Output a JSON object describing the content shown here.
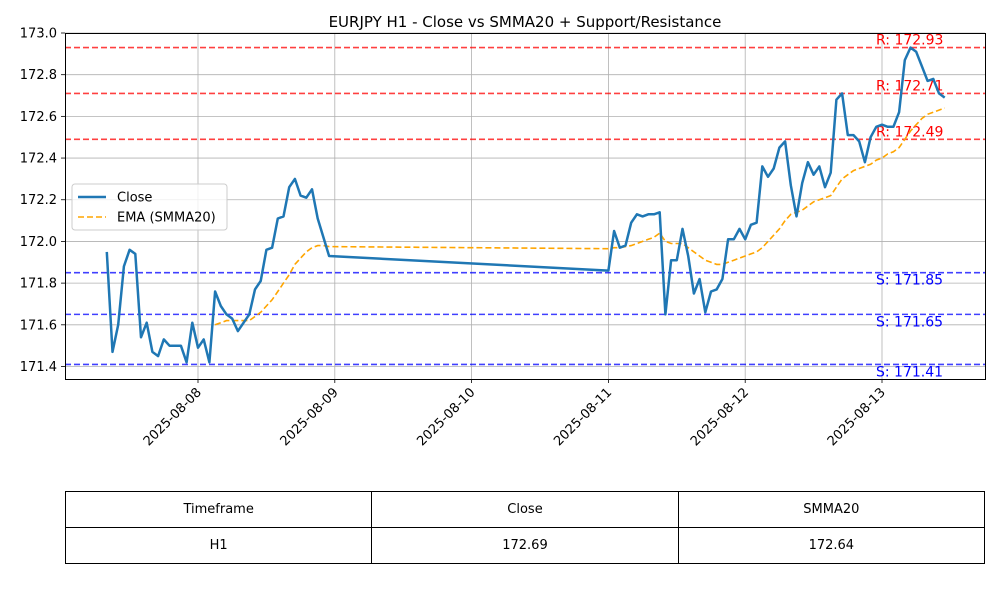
{
  "chart_data": {
    "type": "line",
    "title": "EURJPY H1 - Close vs SMMA20 + Support/Resistance",
    "xlabel": "",
    "ylabel": "",
    "x_ticks": [
      "2025-08-08",
      "2025-08-09",
      "2025-08-10",
      "2025-08-11",
      "2025-08-12",
      "2025-08-13"
    ],
    "ylim": [
      171.34,
      173.0
    ],
    "y_ticks": [
      "171.4",
      "171.6",
      "171.8",
      "172.0",
      "172.2",
      "172.4",
      "172.6",
      "172.8",
      "173.0"
    ],
    "y_tick_values": [
      171.4,
      171.6,
      171.8,
      172.0,
      172.2,
      172.4,
      172.6,
      172.8,
      173.0
    ],
    "grid": true,
    "legend_position": "center-left",
    "colors": {
      "close": "#1f77b4",
      "ema": "#ffa500",
      "resistance": "#ff0000",
      "support": "#0000ff"
    },
    "series": [
      {
        "name": "Close",
        "style": "solid",
        "points": [
          [
            "2025-08-07 08:00",
            171.95
          ],
          [
            "2025-08-07 09:00",
            171.47
          ],
          [
            "2025-08-07 10:00",
            171.6
          ],
          [
            "2025-08-07 11:00",
            171.88
          ],
          [
            "2025-08-07 12:00",
            171.96
          ],
          [
            "2025-08-07 13:00",
            171.94
          ],
          [
            "2025-08-07 14:00",
            171.54
          ],
          [
            "2025-08-07 15:00",
            171.61
          ],
          [
            "2025-08-07 16:00",
            171.47
          ],
          [
            "2025-08-07 17:00",
            171.45
          ],
          [
            "2025-08-07 18:00",
            171.53
          ],
          [
            "2025-08-07 19:00",
            171.5
          ],
          [
            "2025-08-07 20:00",
            171.5
          ],
          [
            "2025-08-07 21:00",
            171.5
          ],
          [
            "2025-08-07 22:00",
            171.42
          ],
          [
            "2025-08-07 23:00",
            171.61
          ],
          [
            "2025-08-08 00:00",
            171.49
          ],
          [
            "2025-08-08 01:00",
            171.53
          ],
          [
            "2025-08-08 02:00",
            171.42
          ],
          [
            "2025-08-08 03:00",
            171.76
          ],
          [
            "2025-08-08 04:00",
            171.69
          ],
          [
            "2025-08-08 05:00",
            171.65
          ],
          [
            "2025-08-08 06:00",
            171.63
          ],
          [
            "2025-08-08 07:00",
            171.57
          ],
          [
            "2025-08-08 08:00",
            171.61
          ],
          [
            "2025-08-08 09:00",
            171.65
          ],
          [
            "2025-08-08 10:00",
            171.77
          ],
          [
            "2025-08-08 11:00",
            171.81
          ],
          [
            "2025-08-08 12:00",
            171.96
          ],
          [
            "2025-08-08 13:00",
            171.97
          ],
          [
            "2025-08-08 14:00",
            172.11
          ],
          [
            "2025-08-08 15:00",
            172.12
          ],
          [
            "2025-08-08 16:00",
            172.26
          ],
          [
            "2025-08-08 17:00",
            172.3
          ],
          [
            "2025-08-08 18:00",
            172.22
          ],
          [
            "2025-08-08 19:00",
            172.21
          ],
          [
            "2025-08-08 20:00",
            172.25
          ],
          [
            "2025-08-08 21:00",
            172.11
          ],
          [
            "2025-08-08 22:00",
            172.02
          ],
          [
            "2025-08-08 23:00",
            171.93
          ],
          [
            "2025-08-11 00:00",
            171.86
          ],
          [
            "2025-08-11 01:00",
            172.05
          ],
          [
            "2025-08-11 02:00",
            171.97
          ],
          [
            "2025-08-11 03:00",
            171.98
          ],
          [
            "2025-08-11 04:00",
            172.09
          ],
          [
            "2025-08-11 05:00",
            172.13
          ],
          [
            "2025-08-11 06:00",
            172.12
          ],
          [
            "2025-08-11 07:00",
            172.13
          ],
          [
            "2025-08-11 08:00",
            172.13
          ],
          [
            "2025-08-11 09:00",
            172.14
          ],
          [
            "2025-08-11 10:00",
            171.65
          ],
          [
            "2025-08-11 11:00",
            171.91
          ],
          [
            "2025-08-11 12:00",
            171.91
          ],
          [
            "2025-08-11 13:00",
            172.06
          ],
          [
            "2025-08-11 14:00",
            171.93
          ],
          [
            "2025-08-11 15:00",
            171.75
          ],
          [
            "2025-08-11 16:00",
            171.82
          ],
          [
            "2025-08-11 17:00",
            171.66
          ],
          [
            "2025-08-11 18:00",
            171.76
          ],
          [
            "2025-08-11 19:00",
            171.77
          ],
          [
            "2025-08-11 20:00",
            171.82
          ],
          [
            "2025-08-11 21:00",
            172.01
          ],
          [
            "2025-08-11 22:00",
            172.01
          ],
          [
            "2025-08-11 23:00",
            172.06
          ],
          [
            "2025-08-12 00:00",
            172.01
          ],
          [
            "2025-08-12 01:00",
            172.08
          ],
          [
            "2025-08-12 02:00",
            172.09
          ],
          [
            "2025-08-12 03:00",
            172.36
          ],
          [
            "2025-08-12 04:00",
            172.31
          ],
          [
            "2025-08-12 05:00",
            172.35
          ],
          [
            "2025-08-12 06:00",
            172.45
          ],
          [
            "2025-08-12 07:00",
            172.48
          ],
          [
            "2025-08-12 08:00",
            172.27
          ],
          [
            "2025-08-12 09:00",
            172.12
          ],
          [
            "2025-08-12 10:00",
            172.28
          ],
          [
            "2025-08-12 11:00",
            172.38
          ],
          [
            "2025-08-12 12:00",
            172.32
          ],
          [
            "2025-08-12 13:00",
            172.36
          ],
          [
            "2025-08-12 14:00",
            172.26
          ],
          [
            "2025-08-12 15:00",
            172.33
          ],
          [
            "2025-08-12 16:00",
            172.68
          ],
          [
            "2025-08-12 17:00",
            172.71
          ],
          [
            "2025-08-12 18:00",
            172.51
          ],
          [
            "2025-08-12 19:00",
            172.51
          ],
          [
            "2025-08-12 20:00",
            172.48
          ],
          [
            "2025-08-12 21:00",
            172.38
          ],
          [
            "2025-08-12 22:00",
            172.5
          ],
          [
            "2025-08-12 23:00",
            172.55
          ],
          [
            "2025-08-13 00:00",
            172.56
          ],
          [
            "2025-08-13 01:00",
            172.55
          ],
          [
            "2025-08-13 02:00",
            172.55
          ],
          [
            "2025-08-13 03:00",
            172.62
          ],
          [
            "2025-08-13 04:00",
            172.87
          ],
          [
            "2025-08-13 05:00",
            172.93
          ],
          [
            "2025-08-13 06:00",
            172.91
          ],
          [
            "2025-08-13 07:00",
            172.84
          ],
          [
            "2025-08-13 08:00",
            172.77
          ],
          [
            "2025-08-13 09:00",
            172.78
          ],
          [
            "2025-08-13 10:00",
            172.71
          ],
          [
            "2025-08-13 11:00",
            172.69
          ]
        ]
      },
      {
        "name": "EMA (SMMA20)",
        "style": "dashed",
        "points": [
          [
            "2025-08-08 03:00",
            171.6
          ],
          [
            "2025-08-08 04:00",
            171.61
          ],
          [
            "2025-08-08 05:00",
            171.62
          ],
          [
            "2025-08-08 06:00",
            171.62
          ],
          [
            "2025-08-08 07:00",
            171.62
          ],
          [
            "2025-08-08 08:00",
            171.62
          ],
          [
            "2025-08-08 09:00",
            171.62
          ],
          [
            "2025-08-08 10:00",
            171.64
          ],
          [
            "2025-08-08 11:00",
            171.66
          ],
          [
            "2025-08-08 12:00",
            171.69
          ],
          [
            "2025-08-08 13:00",
            171.72
          ],
          [
            "2025-08-08 14:00",
            171.76
          ],
          [
            "2025-08-08 15:00",
            171.8
          ],
          [
            "2025-08-08 16:00",
            171.84
          ],
          [
            "2025-08-08 17:00",
            171.89
          ],
          [
            "2025-08-08 18:00",
            171.92
          ],
          [
            "2025-08-08 19:00",
            171.95
          ],
          [
            "2025-08-08 20:00",
            171.97
          ],
          [
            "2025-08-08 21:00",
            171.98
          ],
          [
            "2025-08-08 22:00",
            171.98
          ],
          [
            "2025-08-08 23:00",
            171.975
          ],
          [
            "2025-08-11 00:00",
            171.965
          ],
          [
            "2025-08-11 01:00",
            171.97
          ],
          [
            "2025-08-11 02:00",
            171.97
          ],
          [
            "2025-08-11 03:00",
            171.975
          ],
          [
            "2025-08-11 04:00",
            171.98
          ],
          [
            "2025-08-11 05:00",
            171.99
          ],
          [
            "2025-08-11 06:00",
            172.0
          ],
          [
            "2025-08-11 07:00",
            172.01
          ],
          [
            "2025-08-11 08:00",
            172.02
          ],
          [
            "2025-08-11 09:00",
            172.04
          ],
          [
            "2025-08-11 10:00",
            172.0
          ],
          [
            "2025-08-11 11:00",
            171.99
          ],
          [
            "2025-08-11 12:00",
            171.99
          ],
          [
            "2025-08-11 13:00",
            171.99
          ],
          [
            "2025-08-11 14:00",
            171.97
          ],
          [
            "2025-08-11 15:00",
            171.95
          ],
          [
            "2025-08-11 16:00",
            171.93
          ],
          [
            "2025-08-11 17:00",
            171.91
          ],
          [
            "2025-08-11 18:00",
            171.9
          ],
          [
            "2025-08-11 19:00",
            171.89
          ],
          [
            "2025-08-11 20:00",
            171.89
          ],
          [
            "2025-08-11 21:00",
            171.9
          ],
          [
            "2025-08-11 22:00",
            171.91
          ],
          [
            "2025-08-11 23:00",
            171.92
          ],
          [
            "2025-08-12 00:00",
            171.93
          ],
          [
            "2025-08-12 01:00",
            171.94
          ],
          [
            "2025-08-12 02:00",
            171.95
          ],
          [
            "2025-08-12 03:00",
            171.97
          ],
          [
            "2025-08-12 04:00",
            172.0
          ],
          [
            "2025-08-12 05:00",
            172.03
          ],
          [
            "2025-08-12 06:00",
            172.06
          ],
          [
            "2025-08-12 07:00",
            172.1
          ],
          [
            "2025-08-12 08:00",
            172.13
          ],
          [
            "2025-08-12 09:00",
            172.14
          ],
          [
            "2025-08-12 10:00",
            172.15
          ],
          [
            "2025-08-12 11:00",
            172.17
          ],
          [
            "2025-08-12 12:00",
            172.19
          ],
          [
            "2025-08-12 13:00",
            172.2
          ],
          [
            "2025-08-12 14:00",
            172.21
          ],
          [
            "2025-08-12 15:00",
            172.22
          ],
          [
            "2025-08-12 16:00",
            172.26
          ],
          [
            "2025-08-12 17:00",
            172.3
          ],
          [
            "2025-08-12 18:00",
            172.32
          ],
          [
            "2025-08-12 19:00",
            172.34
          ],
          [
            "2025-08-12 20:00",
            172.35
          ],
          [
            "2025-08-12 21:00",
            172.36
          ],
          [
            "2025-08-12 22:00",
            172.37
          ],
          [
            "2025-08-12 23:00",
            172.39
          ],
          [
            "2025-08-13 00:00",
            172.4
          ],
          [
            "2025-08-13 01:00",
            172.42
          ],
          [
            "2025-08-13 02:00",
            172.43
          ],
          [
            "2025-08-13 03:00",
            172.45
          ],
          [
            "2025-08-13 04:00",
            172.49
          ],
          [
            "2025-08-13 05:00",
            172.53
          ],
          [
            "2025-08-13 06:00",
            172.56
          ],
          [
            "2025-08-13 07:00",
            172.59
          ],
          [
            "2025-08-13 08:00",
            172.61
          ],
          [
            "2025-08-13 09:00",
            172.62
          ],
          [
            "2025-08-13 10:00",
            172.63
          ],
          [
            "2025-08-13 11:00",
            172.64
          ]
        ]
      }
    ],
    "resistance_levels": [
      172.93,
      172.71,
      172.49
    ],
    "support_levels": [
      171.85,
      171.65,
      171.41
    ],
    "resistance_labels": [
      "R: 172.93",
      "R: 172.71",
      "R: 172.49"
    ],
    "support_labels": [
      "S: 171.85",
      "S: 171.65",
      "S: 171.41"
    ]
  },
  "table": {
    "headers": [
      "Timeframe",
      "Close",
      "SMMA20"
    ],
    "row": [
      "H1",
      "172.69",
      "172.64"
    ]
  }
}
